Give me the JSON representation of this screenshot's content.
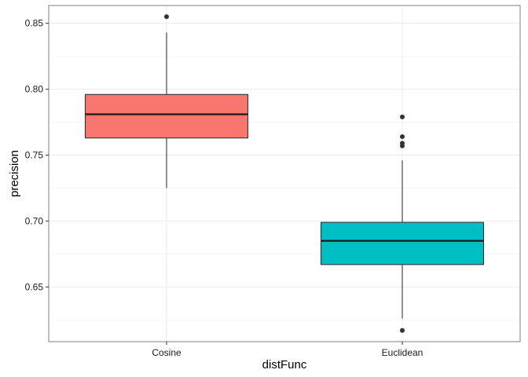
{
  "chart_data": {
    "type": "boxplot",
    "xlabel": "distFunc",
    "ylabel": "precision",
    "ylim": [
      0.6085,
      0.8635
    ],
    "yticks": [
      0.65,
      0.7,
      0.75,
      0.8,
      0.85
    ],
    "ytick_labels": [
      "0.65",
      "0.70",
      "0.75",
      "0.80",
      "0.85"
    ],
    "grid": true,
    "legend": "none",
    "categories": [
      "Cosine",
      "Euclidean"
    ],
    "boxes": [
      {
        "category": "Cosine",
        "color": "#F8766D",
        "whisker_low": 0.725,
        "q1": 0.763,
        "median": 0.781,
        "q3": 0.796,
        "whisker_high": 0.843,
        "outliers": [
          0.855
        ]
      },
      {
        "category": "Euclidean",
        "color": "#00BFC4",
        "whisker_low": 0.626,
        "q1": 0.667,
        "median": 0.685,
        "q3": 0.699,
        "whisker_high": 0.746,
        "outliers": [
          0.617,
          0.757,
          0.759,
          0.764,
          0.779
        ]
      }
    ]
  }
}
